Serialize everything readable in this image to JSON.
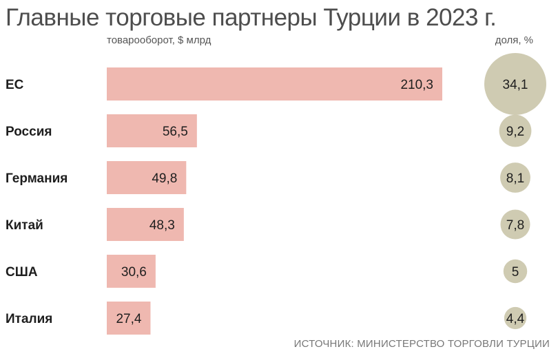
{
  "header": {
    "title": "Главные торговые партнеры Турции в 2023 г.",
    "subtitle": "товарооборот, $ млрд",
    "share_label": "доля, %"
  },
  "footer": {
    "source": "ИСТОЧНИК: МИНИСТЕРСТВО ТОРГОВЛИ ТУРЦИИ"
  },
  "colors": {
    "bar": "#efb8b0",
    "circle": "#cfcbb2",
    "title": "#4d4d4d"
  },
  "chart_data": {
    "type": "bar",
    "orientation": "horizontal",
    "categories": [
      "ЕС",
      "Россия",
      "Германия",
      "Китай",
      "США",
      "Италия"
    ],
    "values": [
      210.3,
      56.5,
      49.8,
      48.3,
      30.6,
      27.4
    ],
    "value_labels": [
      "210,3",
      "56,5",
      "49,8",
      "48,3",
      "30,6",
      "27,4"
    ],
    "share_values": [
      34.1,
      9.2,
      8.1,
      7.8,
      5,
      4.4
    ],
    "share_labels": [
      "34,1",
      "9,2",
      "8,1",
      "7,8",
      "5",
      "4,4"
    ],
    "title": "Главные торговые партнеры Турции в 2023 г.",
    "xlabel": "товарооборот, $ млрд",
    "share_series_label": "доля, %",
    "grid": false
  }
}
